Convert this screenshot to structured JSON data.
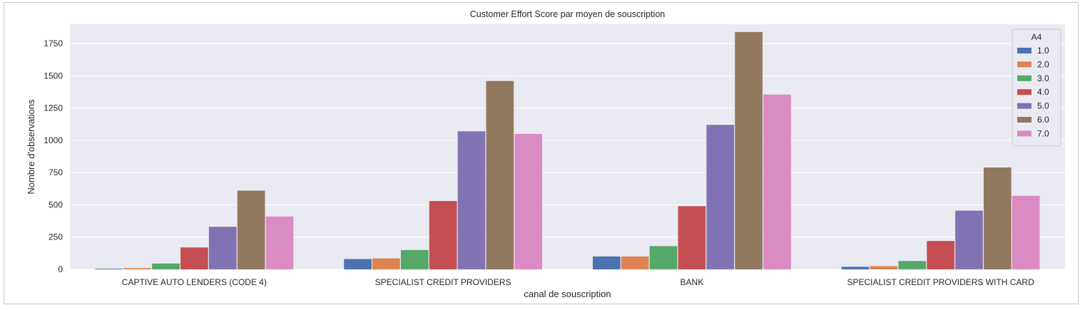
{
  "chart_data": {
    "type": "bar",
    "title": "Customer Effort Score par moyen de souscription",
    "xlabel": "canal de souscription",
    "ylabel": "Nombre d'observations",
    "ylim": [
      0,
      1900
    ],
    "yticks": [
      0,
      250,
      500,
      750,
      1000,
      1250,
      1500,
      1750
    ],
    "grid": true,
    "legend_position": "top-right",
    "legend_title": "A4",
    "categories": [
      "CAPTIVE AUTO LENDERS (CODE 4)",
      "SPECIALIST CREDIT PROVIDERS",
      "BANK",
      "SPECIALIST CREDIT PROVIDERS WITH CARD"
    ],
    "series": [
      {
        "name": "1.0",
        "color": "#4c72b0",
        "values": [
          5,
          80,
          100,
          20
        ]
      },
      {
        "name": "2.0",
        "color": "#dd8452",
        "values": [
          10,
          85,
          100,
          25
        ]
      },
      {
        "name": "3.0",
        "color": "#55a868",
        "values": [
          45,
          150,
          180,
          65
        ]
      },
      {
        "name": "4.0",
        "color": "#c44e52",
        "values": [
          170,
          530,
          490,
          220
        ]
      },
      {
        "name": "5.0",
        "color": "#8172b3",
        "values": [
          330,
          1070,
          1120,
          455
        ]
      },
      {
        "name": "6.0",
        "color": "#937860",
        "values": [
          610,
          1460,
          1840,
          790
        ]
      },
      {
        "name": "7.0",
        "color": "#da8bc3",
        "values": [
          410,
          1050,
          1355,
          570
        ]
      }
    ],
    "colors": {
      "plot_background": "#eaeaf2",
      "grid": "#ffffff"
    }
  }
}
